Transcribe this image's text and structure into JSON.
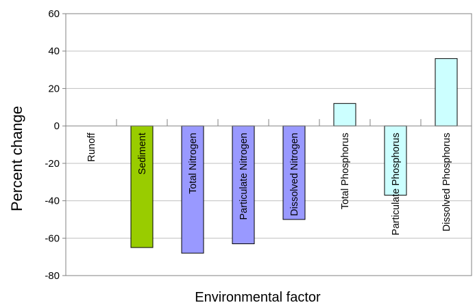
{
  "chart_data": {
    "type": "bar",
    "title": "",
    "xlabel": "Environmental factor",
    "ylabel": "Percent change",
    "ylim": [
      -80,
      60
    ],
    "yticks": [
      60,
      40,
      20,
      0,
      -20,
      -40,
      -60,
      -80
    ],
    "grid": true,
    "categories": [
      "Runoff",
      "Sediment",
      "Total Nitrogen",
      "Particulate Nitrogen",
      "Dissolved Nitrogen",
      "Total Phosphorus",
      "Particulate Phosphorus",
      "Dissolved Phosphorus"
    ],
    "values": [
      0,
      -65,
      -68,
      -63,
      -50,
      12,
      -37,
      36
    ],
    "colors": [
      "#ffffff",
      "#99cc00",
      "#9999ff",
      "#9999ff",
      "#9999ff",
      "#ccffff",
      "#ccffff",
      "#ccffff"
    ]
  }
}
